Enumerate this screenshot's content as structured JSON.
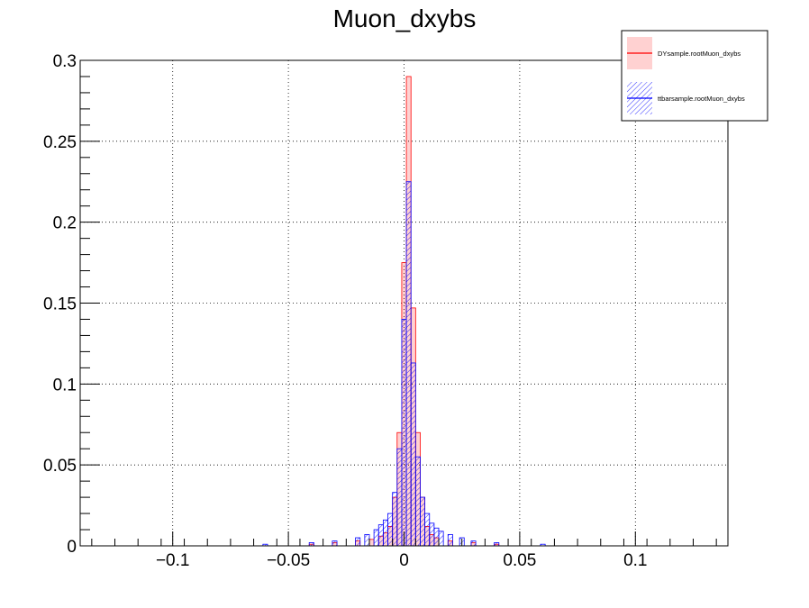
{
  "chart_data": {
    "type": "histogram",
    "title": "Muon_dxybs",
    "xlabel": "",
    "ylabel": "",
    "xlim": [
      -0.14,
      0.14
    ],
    "ylim": [
      0,
      0.3
    ],
    "grid": true,
    "legend_position": "top-right",
    "x_ticks": [
      {
        "value": -0.1,
        "label": "−0.1"
      },
      {
        "value": -0.05,
        "label": "−0.05"
      },
      {
        "value": 0,
        "label": "0"
      },
      {
        "value": 0.05,
        "label": "0.05"
      },
      {
        "value": 0.1,
        "label": "0.1"
      }
    ],
    "y_ticks": [
      {
        "value": 0,
        "label": "0"
      },
      {
        "value": 0.05,
        "label": "0.05"
      },
      {
        "value": 0.1,
        "label": "0.1"
      },
      {
        "value": 0.15,
        "label": "0.15"
      },
      {
        "value": 0.2,
        "label": "0.2"
      },
      {
        "value": 0.25,
        "label": "0.25"
      },
      {
        "value": 0.3,
        "label": "0.3"
      }
    ],
    "series": [
      {
        "name": "DYsample.rootMuon_dxybs",
        "color": "#ff0000",
        "fill": "solid-light-red",
        "bin_width": 0.002,
        "bins": [
          {
            "x": -0.04,
            "y": 0.001
          },
          {
            "x": -0.03,
            "y": 0.002
          },
          {
            "x": -0.02,
            "y": 0.003
          },
          {
            "x": -0.014,
            "y": 0.004
          },
          {
            "x": -0.01,
            "y": 0.006
          },
          {
            "x": -0.008,
            "y": 0.008
          },
          {
            "x": -0.006,
            "y": 0.012
          },
          {
            "x": -0.004,
            "y": 0.03
          },
          {
            "x": -0.002,
            "y": 0.07
          },
          {
            "x": 0.0,
            "y": 0.175
          },
          {
            "x": 0.002,
            "y": 0.29
          },
          {
            "x": 0.004,
            "y": 0.147
          },
          {
            "x": 0.006,
            "y": 0.07
          },
          {
            "x": 0.008,
            "y": 0.03
          },
          {
            "x": 0.01,
            "y": 0.012
          },
          {
            "x": 0.012,
            "y": 0.007
          },
          {
            "x": 0.014,
            "y": 0.005
          },
          {
            "x": 0.02,
            "y": 0.003
          },
          {
            "x": 0.03,
            "y": 0.002
          },
          {
            "x": 0.04,
            "y": 0.001
          }
        ]
      },
      {
        "name": "ttbarsample.rootMuon_dxybs",
        "color": "#0000ff",
        "fill": "hatched-blue",
        "bin_width": 0.002,
        "bins": [
          {
            "x": -0.06,
            "y": 0.001
          },
          {
            "x": -0.04,
            "y": 0.002
          },
          {
            "x": -0.03,
            "y": 0.003
          },
          {
            "x": -0.02,
            "y": 0.005
          },
          {
            "x": -0.016,
            "y": 0.007
          },
          {
            "x": -0.012,
            "y": 0.01
          },
          {
            "x": -0.01,
            "y": 0.013
          },
          {
            "x": -0.008,
            "y": 0.016
          },
          {
            "x": -0.006,
            "y": 0.02
          },
          {
            "x": -0.004,
            "y": 0.033
          },
          {
            "x": -0.002,
            "y": 0.06
          },
          {
            "x": 0.0,
            "y": 0.14
          },
          {
            "x": 0.002,
            "y": 0.225
          },
          {
            "x": 0.004,
            "y": 0.113
          },
          {
            "x": 0.006,
            "y": 0.055
          },
          {
            "x": 0.008,
            "y": 0.03
          },
          {
            "x": 0.01,
            "y": 0.02
          },
          {
            "x": 0.012,
            "y": 0.014
          },
          {
            "x": 0.014,
            "y": 0.011
          },
          {
            "x": 0.016,
            "y": 0.009
          },
          {
            "x": 0.02,
            "y": 0.007
          },
          {
            "x": 0.025,
            "y": 0.005
          },
          {
            "x": 0.03,
            "y": 0.003
          },
          {
            "x": 0.04,
            "y": 0.002
          },
          {
            "x": 0.06,
            "y": 0.001
          }
        ]
      }
    ]
  }
}
